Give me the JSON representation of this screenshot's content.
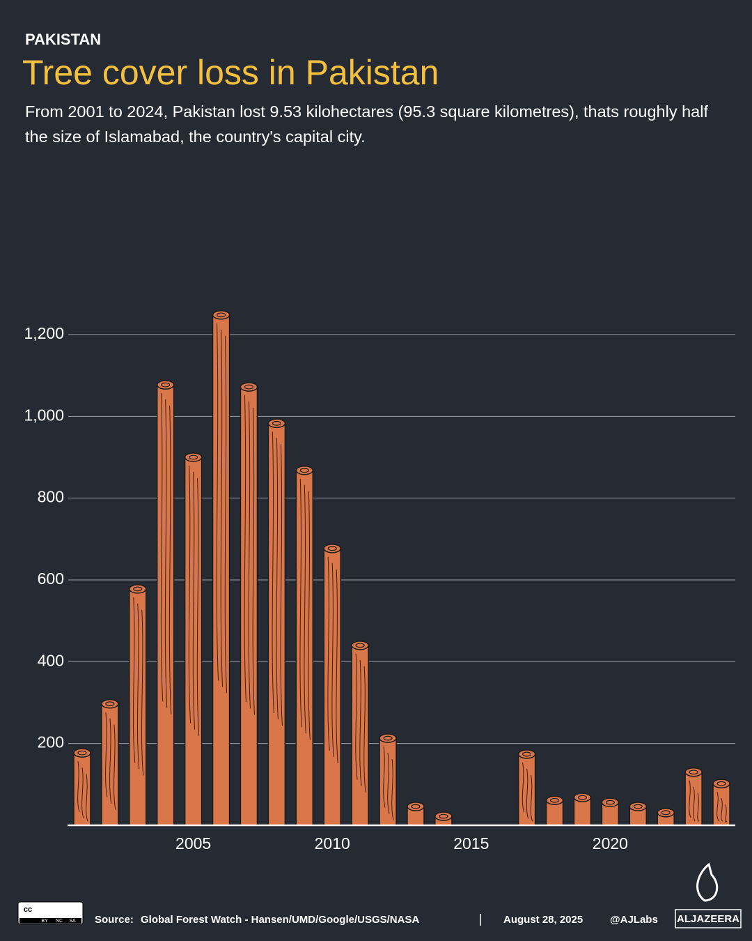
{
  "chart_data": {
    "type": "bar",
    "kicker": "PAKISTAN",
    "title": "Tree cover loss in Pakistan",
    "subtitle": "From 2001 to 2024, Pakistan lost 9.53 kilohectares (95.3 square kilometres), thats roughly half the size of Islamabad, the country's capital city.",
    "x": [
      2001,
      2002,
      2003,
      2004,
      2005,
      2006,
      2007,
      2008,
      2009,
      2010,
      2011,
      2012,
      2013,
      2014,
      2015,
      2016,
      2017,
      2018,
      2019,
      2020,
      2021,
      2022,
      2023,
      2024
    ],
    "values": [
      177,
      297,
      578,
      1077,
      900,
      1248,
      1072,
      983,
      868,
      677,
      440,
      213,
      46,
      22,
      null,
      null,
      174,
      61,
      68,
      56,
      46,
      31,
      130,
      102
    ],
    "color": "#d9774a",
    "xlim": [
      2000.5,
      2024.5
    ],
    "xticks": [
      2005,
      2010,
      2015,
      2020
    ],
    "ylim": [
      0,
      1200
    ],
    "yticks": [
      200,
      400,
      600,
      800,
      {
        "value": 1000,
        "label": "1,000"
      },
      {
        "value": 1200,
        "label": "1,200"
      }
    ],
    "grid": true,
    "source_label": "Source:",
    "source": "Global Forest Watch - Hansen/UMD/Google/USGS/NASA",
    "date": "August 28, 2025",
    "handle": "@AJLabs",
    "logo": "ALJAZEERA",
    "license": [
      "cc",
      "BY",
      "NC",
      "SA"
    ]
  }
}
